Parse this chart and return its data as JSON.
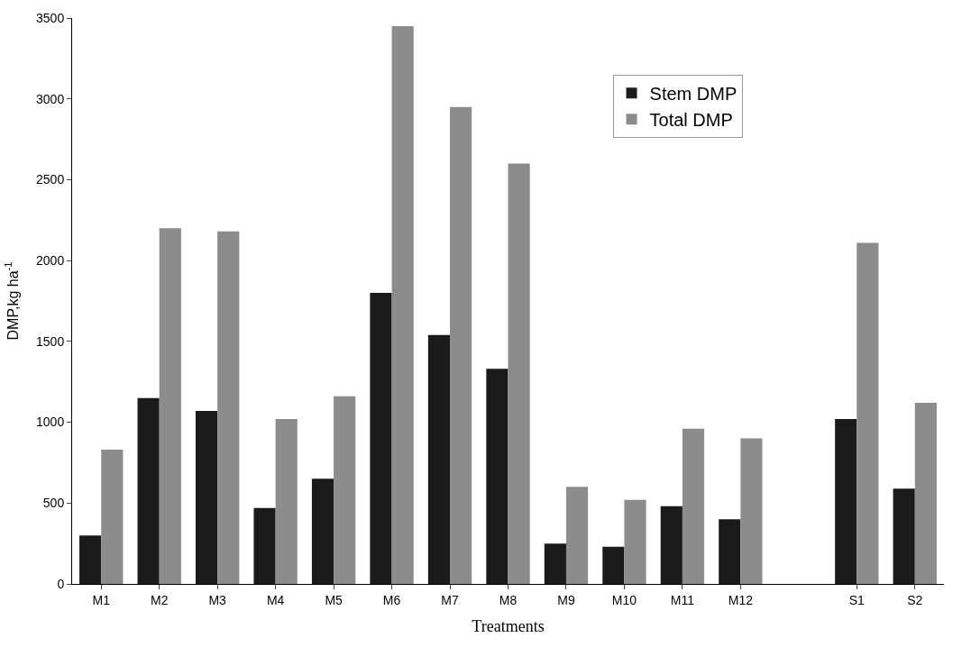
{
  "chart_data": {
    "type": "bar",
    "xlabel": "Treatments",
    "ylabel": "DMP,kg ha$^{-1}$",
    "categories": [
      "M1",
      "M2",
      "M3",
      "M4",
      "M5",
      "M6",
      "M7",
      "M8",
      "M9",
      "M10",
      "M11",
      "M12",
      null,
      "S1",
      "S2"
    ],
    "series": [
      {
        "name": "Stem DMP",
        "color": "#1a1a1a",
        "values": [
          300,
          1150,
          1070,
          470,
          650,
          1800,
          1540,
          1330,
          250,
          230,
          480,
          400,
          null,
          1020,
          590
        ]
      },
      {
        "name": "Total DMP",
        "color": "#8c8c8c",
        "values": [
          830,
          2200,
          2180,
          1020,
          1160,
          3450,
          2950,
          2600,
          600,
          520,
          960,
          900,
          null,
          2110,
          1120
        ]
      }
    ],
    "ylim": [
      0,
      3500
    ],
    "yticks": [
      0,
      500,
      1000,
      1500,
      2000,
      2500,
      3000,
      3500
    ],
    "legend": "top right"
  }
}
